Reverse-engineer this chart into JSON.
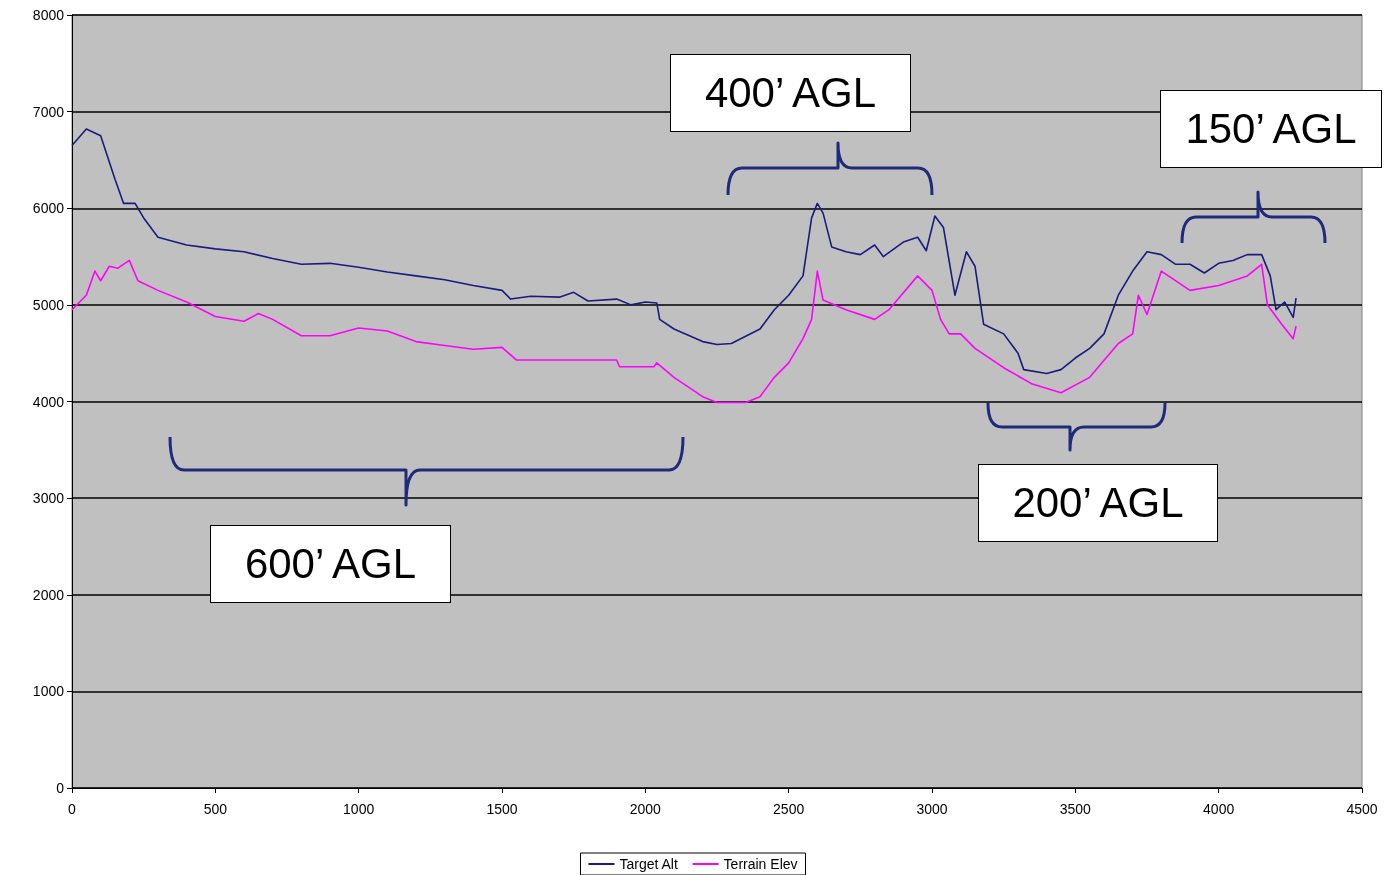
{
  "chart_data": {
    "type": "line",
    "xlim": [
      0,
      4500
    ],
    "xticks": [
      0,
      500,
      1000,
      1500,
      2000,
      2500,
      3000,
      3500,
      4000,
      4500
    ],
    "ylim": [
      0,
      8000
    ],
    "yticks": [
      0,
      1000,
      2000,
      3000,
      4000,
      5000,
      6000,
      7000,
      8000
    ],
    "grid": "y",
    "legend": "bottom",
    "marker": "none",
    "line_style": "solid",
    "annotations": [
      "400’ AGL",
      "150’ AGL",
      "600’ AGL",
      "200’ AGL"
    ],
    "series": [
      {
        "name": "Target Alt",
        "color": "#1a1a80",
        "x": [
          0,
          50,
          100,
          150,
          180,
          220,
          250,
          300,
          400,
          500,
          600,
          700,
          800,
          900,
          1000,
          1100,
          1200,
          1300,
          1400,
          1500,
          1530,
          1600,
          1700,
          1750,
          1800,
          1900,
          1950,
          2000,
          2040,
          2050,
          2100,
          2200,
          2250,
          2300,
          2400,
          2450,
          2500,
          2550,
          2580,
          2600,
          2620,
          2650,
          2700,
          2750,
          2800,
          2830,
          2900,
          2950,
          2980,
          3010,
          3040,
          3080,
          3120,
          3150,
          3180,
          3250,
          3300,
          3320,
          3400,
          3450,
          3500,
          3550,
          3600,
          3650,
          3700,
          3750,
          3800,
          3850,
          3900,
          3950,
          4000,
          4050,
          4100,
          4150,
          4180,
          4200,
          4230,
          4260,
          4270
        ],
        "values": [
          6650,
          6820,
          6750,
          6300,
          6050,
          6050,
          5900,
          5700,
          5620,
          5580,
          5550,
          5480,
          5420,
          5430,
          5390,
          5340,
          5300,
          5260,
          5200,
          5150,
          5060,
          5090,
          5080,
          5130,
          5040,
          5060,
          5000,
          5030,
          5020,
          4850,
          4750,
          4620,
          4590,
          4600,
          4750,
          4950,
          5100,
          5300,
          5900,
          6050,
          5950,
          5600,
          5550,
          5520,
          5620,
          5500,
          5650,
          5700,
          5560,
          5920,
          5800,
          5100,
          5550,
          5400,
          4800,
          4700,
          4500,
          4330,
          4290,
          4330,
          4450,
          4550,
          4700,
          5100,
          5350,
          5550,
          5520,
          5420,
          5420,
          5330,
          5430,
          5460,
          5520,
          5520,
          5300,
          4950,
          5030,
          4870,
          5070
        ]
      },
      {
        "name": "Terrain Elev",
        "color": "#ff00ff",
        "x": [
          0,
          50,
          80,
          100,
          130,
          160,
          200,
          230,
          300,
          400,
          500,
          600,
          650,
          700,
          800,
          900,
          1000,
          1100,
          1200,
          1300,
          1400,
          1500,
          1550,
          1700,
          1900,
          1910,
          2030,
          2040,
          2100,
          2200,
          2250,
          2350,
          2400,
          2450,
          2500,
          2550,
          2580,
          2600,
          2620,
          2700,
          2800,
          2850,
          2950,
          3000,
          3030,
          3060,
          3100,
          3150,
          3250,
          3350,
          3450,
          3550,
          3650,
          3700,
          3720,
          3750,
          3800,
          3900,
          4000,
          4100,
          4150,
          4170,
          4220,
          4260,
          4270
        ],
        "values": [
          4950,
          5100,
          5350,
          5250,
          5400,
          5380,
          5460,
          5250,
          5150,
          5030,
          4880,
          4830,
          4910,
          4850,
          4680,
          4680,
          4760,
          4730,
          4620,
          4580,
          4540,
          4560,
          4430,
          4430,
          4430,
          4360,
          4360,
          4400,
          4250,
          4050,
          3990,
          3990,
          4050,
          4250,
          4400,
          4650,
          4850,
          5350,
          5050,
          4950,
          4850,
          4950,
          5300,
          5150,
          4850,
          4700,
          4700,
          4550,
          4350,
          4180,
          4090,
          4250,
          4600,
          4700,
          5100,
          4900,
          5350,
          5150,
          5200,
          5300,
          5420,
          5000,
          4800,
          4650,
          4780
        ]
      }
    ]
  }
}
